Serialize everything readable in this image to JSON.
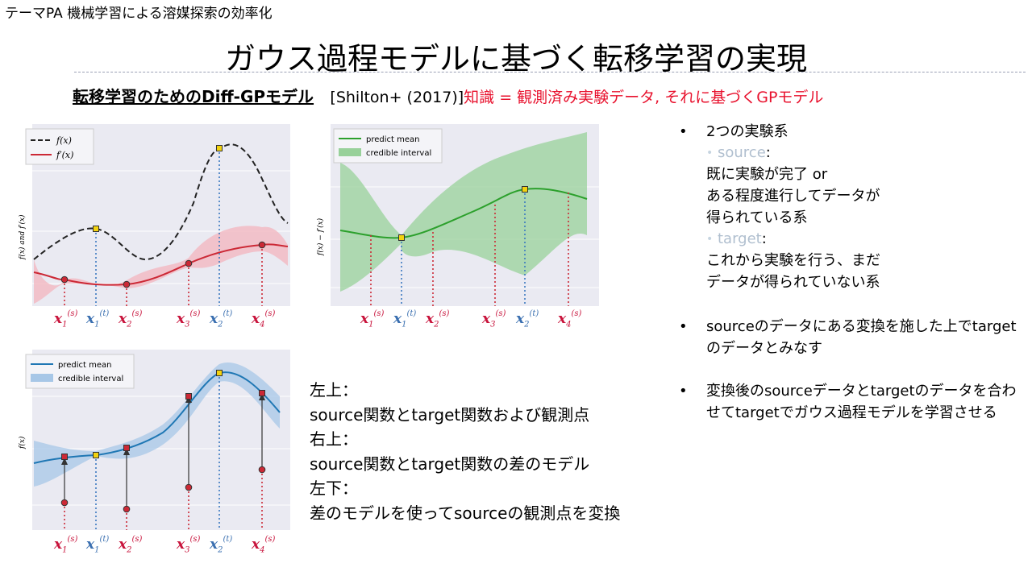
{
  "header": {
    "theme": "テーマPA 機械学習による溶媒探索の効率化",
    "title": "ガウス過程モデルに基づく転移学習の実現",
    "subtitle_bold": "転移学習のためのDiff-GPモデル",
    "citation": "[Shilton+ (2017)]",
    "subtitle_red": "知識 = 観測済み実験データ, それに基づくGPモデル"
  },
  "plots": {
    "top_left": {
      "legend": [
        "f(x)",
        "f′(x)"
      ],
      "ylabel": "f(x) and f′(x)"
    },
    "top_right": {
      "legend": [
        "predict mean",
        "credible interval"
      ],
      "ylabel": "f(x) − f′(x)"
    },
    "bottom_left": {
      "legend": [
        "predict mean",
        "credible interval"
      ],
      "ylabel": "f(x)"
    },
    "x_labels": [
      {
        "sub": "1",
        "sup": "(s)",
        "kind": "source"
      },
      {
        "sub": "1",
        "sup": "(t)",
        "kind": "target"
      },
      {
        "sub": "2",
        "sup": "(s)",
        "kind": "source"
      },
      {
        "sub": "3",
        "sup": "(s)",
        "kind": "source"
      },
      {
        "sub": "2",
        "sup": "(t)",
        "kind": "target"
      },
      {
        "sub": "4",
        "sup": "(s)",
        "kind": "source"
      }
    ],
    "x_symbol": "x"
  },
  "description": [
    "左上：",
    "source関数とtarget関数および観測点",
    "右上：",
    "source関数とtarget関数の差のモデル",
    "左下：",
    "差のモデルを使ってsourceの観測点を変換"
  ],
  "bullets": {
    "b1": "2つの実験系",
    "source_label": "source",
    "source_text": [
      "既に実験が完了 or",
      "ある程度進行してデータが",
      "得られている系"
    ],
    "target_label": "target",
    "target_text": [
      "これから実験を行う、まだ",
      "データが得られていない系"
    ],
    "colon": ":",
    "b2": "sourceのデータにある変換を施した上でtargetのデータとみなす",
    "b3": "変換後のsourceデータとtargetのデータを合わせてtargetでガウス過程モデルを学習させる"
  },
  "colors": {
    "source_red": "#c8143c",
    "target_blue": "#3a6fb0",
    "gp_green": "#2ca02c",
    "gp_blue": "#1f77b4",
    "panel_bg": "#eaeaf2",
    "title_red": "#e8112d"
  }
}
